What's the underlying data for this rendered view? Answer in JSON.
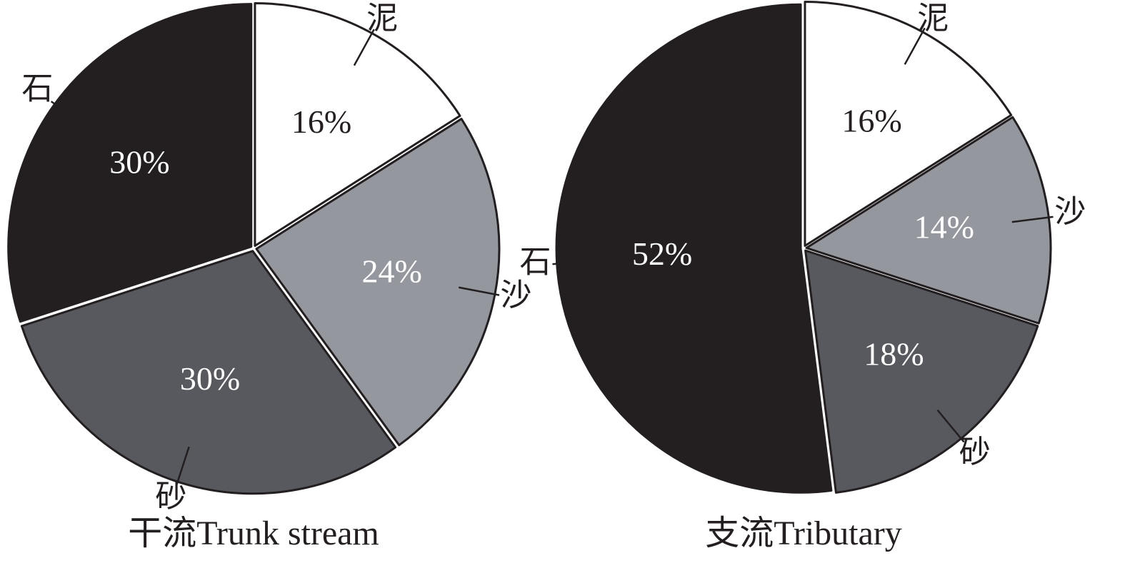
{
  "chart_data": [
    {
      "type": "pie",
      "title": "干流Trunk stream",
      "categories": [
        "泥",
        "沙",
        "砂",
        "石"
      ],
      "values": [
        16,
        24,
        30,
        30
      ],
      "value_labels": [
        "16%",
        "24%",
        "30%",
        "30%"
      ],
      "colors": [
        "#ffffff",
        "#95979f",
        "#58595e",
        "#231f20"
      ]
    },
    {
      "type": "pie",
      "title": "支流Tributary",
      "categories": [
        "泥",
        "沙",
        "砂",
        "石"
      ],
      "values": [
        16,
        14,
        18,
        52
      ],
      "value_labels": [
        "16%",
        "14%",
        "18%",
        "52%"
      ],
      "colors": [
        "#ffffff",
        "#95979f",
        "#58595e",
        "#231f20"
      ]
    }
  ]
}
